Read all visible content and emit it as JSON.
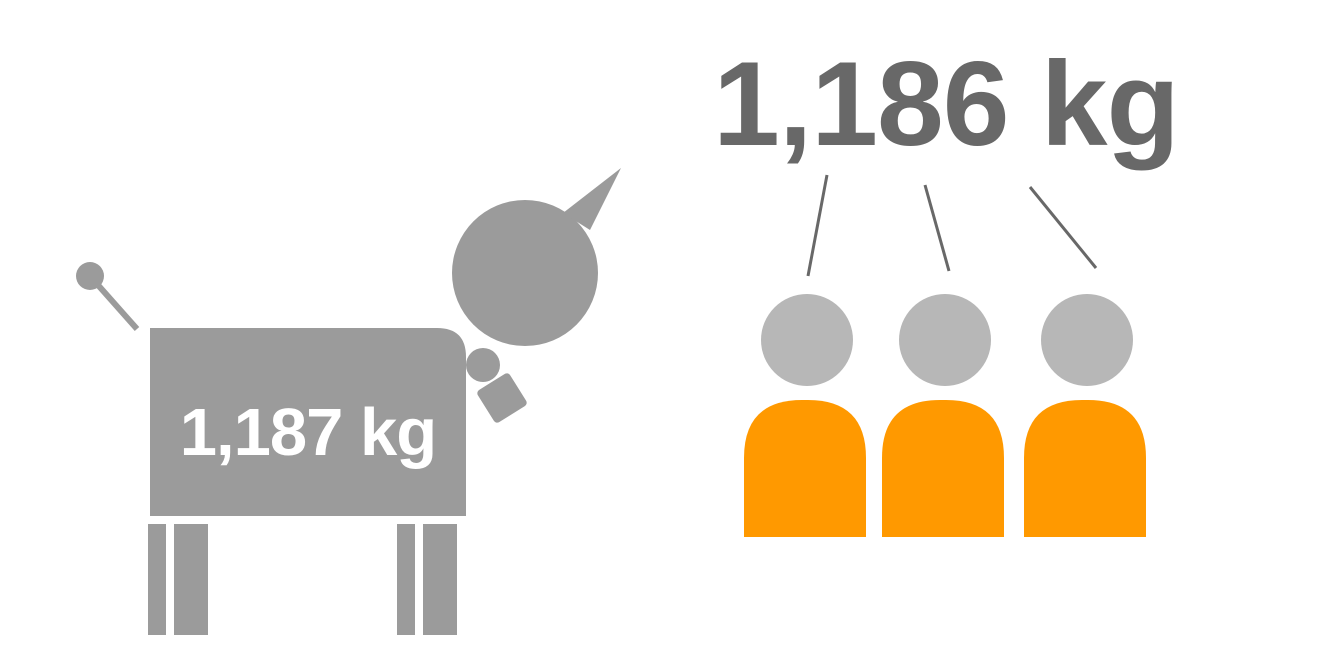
{
  "robot": {
    "weight_label": "1,187 kg",
    "icon": "robot-dog-icon"
  },
  "group": {
    "weight_label": "1,186 kg",
    "people_count": 3,
    "icon": "person-icon"
  },
  "colors": {
    "robot": "#9b9b9b",
    "person_head": "#b7b7b7",
    "person_body": "#ff9900",
    "big_text": "#686868",
    "robot_text": "#ffffff",
    "connector": "#686868"
  }
}
